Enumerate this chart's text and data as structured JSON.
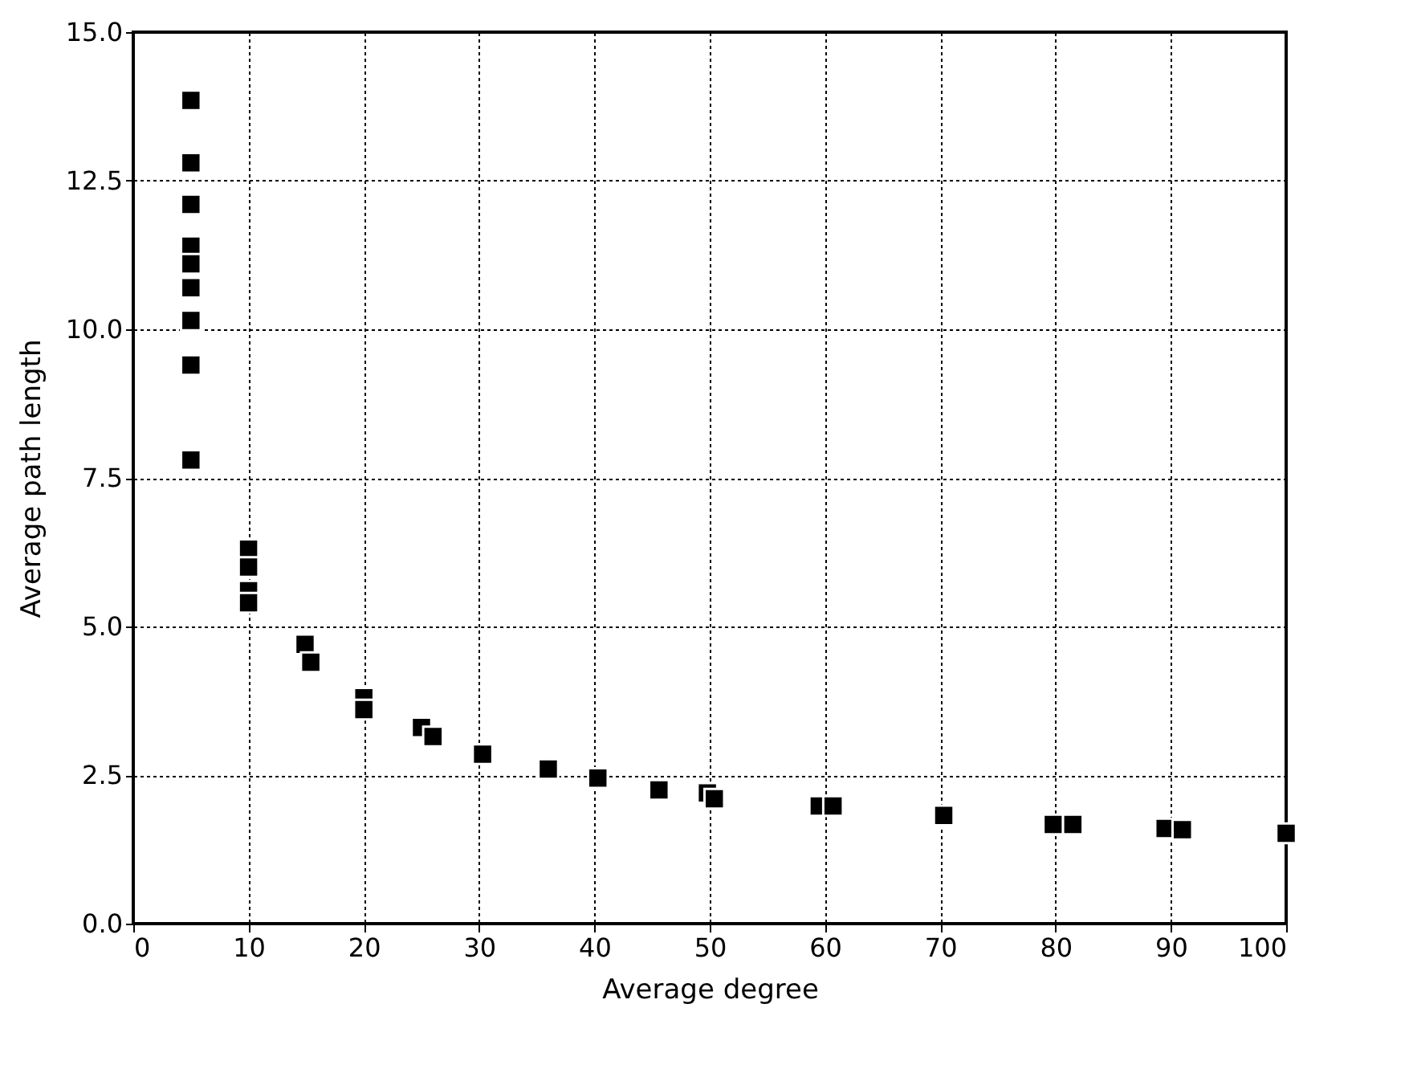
{
  "chart_data": {
    "type": "scatter",
    "xlabel": "Average degree",
    "ylabel": "Average path length",
    "xlim": [
      0,
      100
    ],
    "xticks": [
      0,
      10,
      20,
      30,
      40,
      50,
      60,
      70,
      80,
      90,
      100
    ],
    "ylim": [
      0,
      15
    ],
    "yticks": [
      {
        "value": 0,
        "label": "0.0"
      },
      {
        "value": 2.5,
        "label": "2.5"
      },
      {
        "value": 5,
        "label": "5.0"
      },
      {
        "value": 7.5,
        "label": "7.5"
      },
      {
        "value": 10,
        "label": "10.0"
      },
      {
        "value": 12.5,
        "label": "12.5"
      },
      {
        "value": 15,
        "label": "15.0"
      }
    ],
    "grid": true,
    "marker": "square",
    "series": [
      {
        "color": "#000000",
        "x": [
          5,
          5,
          5,
          5,
          5,
          5,
          5,
          5,
          5,
          10,
          10,
          10,
          10,
          14.9,
          15.4,
          20,
          20,
          25,
          26,
          30.3,
          36,
          40.3,
          45.6,
          49.8,
          50.4,
          59.5,
          60.7,
          70.3,
          79.8,
          81.5,
          89.5,
          91,
          100
        ],
        "values": [
          13.85,
          12.8,
          12.1,
          11.4,
          11.1,
          10.7,
          10.15,
          9.4,
          7.8,
          6.3,
          6.0,
          5.6,
          5.4,
          4.7,
          4.4,
          3.8,
          3.6,
          3.3,
          3.15,
          2.85,
          2.6,
          2.45,
          2.25,
          2.2,
          2.1,
          1.98,
          1.98,
          1.82,
          1.67,
          1.67,
          1.6,
          1.58,
          1.52
        ]
      }
    ]
  }
}
